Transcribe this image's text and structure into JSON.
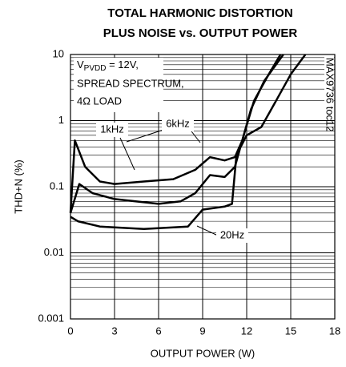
{
  "chart_data": {
    "type": "line",
    "title": [
      "TOTAL HARMONIC DISTORTION",
      "PLUS NOISE vs. OUTPUT POWER"
    ],
    "xlabel": "OUTPUT POWER (W)",
    "ylabel": "THD+N (%)",
    "side_label": "MAX9736 toc12",
    "conditions": {
      "v": "V",
      "sub": "PVDD",
      "rest": " = 12V,",
      "lines": [
        "SPREAD SPECTRUM,",
        "4Ω LOAD"
      ]
    },
    "xlim": [
      0,
      18
    ],
    "xticks": [
      0,
      3,
      6,
      9,
      12,
      15,
      18
    ],
    "ylim": [
      0.001,
      10
    ],
    "yticks": [
      0.001,
      0.01,
      0.1,
      1,
      10
    ],
    "log_y": true,
    "grid": true,
    "minor_grid": true,
    "series": [
      {
        "name": "6kHz",
        "color": "#000000",
        "x": [
          0,
          0.3,
          1,
          2,
          3,
          5,
          7,
          8.5,
          9.5,
          10.5,
          11.2,
          11.7,
          12.3,
          13.2,
          14.5
        ],
        "values": [
          0.04,
          0.5,
          0.2,
          0.12,
          0.11,
          0.12,
          0.13,
          0.18,
          0.28,
          0.25,
          0.28,
          0.5,
          1.5,
          4,
          10
        ]
      },
      {
        "name": "1kHz",
        "color": "#000000",
        "x": [
          0,
          0.6,
          1.5,
          3,
          6,
          7.5,
          8.5,
          9.5,
          10.5,
          11.2,
          11.8,
          12.5,
          13.5,
          14.3
        ],
        "values": [
          0.04,
          0.11,
          0.08,
          0.065,
          0.055,
          0.06,
          0.08,
          0.15,
          0.14,
          0.2,
          0.6,
          2,
          5,
          10
        ]
      },
      {
        "name": "20Hz",
        "color": "#000000",
        "x": [
          0,
          0.5,
          2,
          5,
          8,
          9,
          10.5,
          11,
          11.3,
          12,
          13,
          14,
          15,
          16
        ],
        "values": [
          0.035,
          0.03,
          0.025,
          0.023,
          0.025,
          0.045,
          0.05,
          0.055,
          0.3,
          0.6,
          0.8,
          2,
          5,
          10
        ]
      }
    ]
  }
}
